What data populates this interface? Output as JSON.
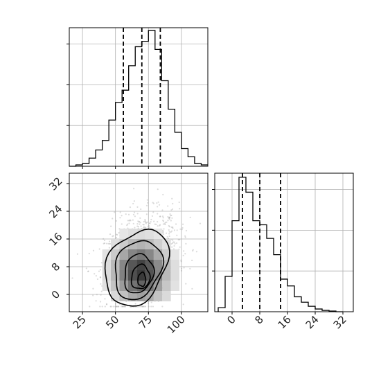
{
  "chart_data": {
    "type": "corner",
    "colors": {
      "line": "#000000",
      "grid": "#b0b0b0",
      "points": "#9a9a9a"
    },
    "grid": true,
    "panels": [
      {
        "name": "param-1-histogram",
        "type": "histogram",
        "xlim": [
          15,
          120
        ],
        "ylim": [
          0,
          1.02
        ],
        "bin_edges": [
          15,
          20,
          25,
          30,
          35,
          40,
          45,
          50,
          55,
          60,
          65,
          70,
          75,
          80,
          85,
          90,
          95,
          100,
          105,
          110,
          115,
          120
        ],
        "counts": [
          0,
          0.01,
          0.02,
          0.06,
          0.12,
          0.19,
          0.34,
          0.47,
          0.56,
          0.74,
          0.88,
          0.92,
          1.0,
          0.86,
          0.63,
          0.42,
          0.25,
          0.13,
          0.07,
          0.02,
          0.01
        ],
        "quantiles": [
          56,
          70,
          84
        ],
        "xtick_values": [
          25,
          50,
          75,
          100
        ],
        "ytick_count": 3
      },
      {
        "name": "param-2-histogram",
        "type": "histogram",
        "xlim": [
          -5,
          35
        ],
        "ylim": [
          0,
          1.02
        ],
        "bin_edges": [
          -4,
          -2,
          0,
          2,
          4,
          6,
          8,
          10,
          12,
          14,
          16,
          18,
          20,
          22,
          24,
          26,
          28,
          30,
          32
        ],
        "counts": [
          0.03,
          0.26,
          0.67,
          0.99,
          0.88,
          0.67,
          0.64,
          0.54,
          0.42,
          0.24,
          0.19,
          0.11,
          0.07,
          0.04,
          0.02,
          0.01,
          0.005,
          0
        ],
        "quantiles": [
          3,
          8,
          14
        ],
        "xticks": [
          "0",
          "8",
          "16",
          "24",
          "32"
        ],
        "xtick_values": [
          0,
          8,
          16,
          24,
          32
        ],
        "ytick_count": 3
      },
      {
        "name": "joint-density",
        "type": "scatter-contour",
        "xlim": [
          15,
          120
        ],
        "ylim": [
          -5,
          35
        ],
        "xticks": [
          "25",
          "50",
          "75",
          "100"
        ],
        "xtick_values": [
          25,
          50,
          75,
          100
        ],
        "yticks": [
          "0",
          "8",
          "16",
          "24",
          "32"
        ],
        "ytick_values": [
          0,
          8,
          16,
          24,
          32
        ],
        "center": [
          70,
          8
        ],
        "contour_levels": [
          {
            "cx": 66,
            "cy": 7.8,
            "rx": 24,
            "ry": 10.5
          },
          {
            "cx": 67,
            "cy": 7.2,
            "rx": 18,
            "ry": 8.3
          },
          {
            "cx": 67.5,
            "cy": 6.0,
            "rx": 11,
            "ry": 5.6
          },
          {
            "cx": 69,
            "cy": 5.0,
            "rx": 7,
            "ry": 3.5
          },
          {
            "cx": 70,
            "cy": 4.3,
            "rx": 3,
            "ry": 2
          }
        ]
      }
    ]
  }
}
